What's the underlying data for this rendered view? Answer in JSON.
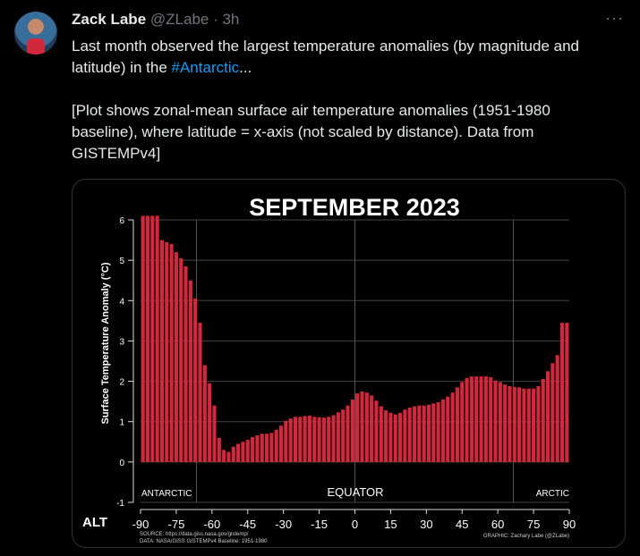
{
  "tweet": {
    "author_name": "Zack Labe",
    "handle": "@ZLabe",
    "separator": " · ",
    "time": "3h",
    "more_label": "···",
    "text_line1_pre": "Last month observed the largest temperature anomalies (by magnitude and latitude) in the ",
    "hashtag": "#Antarctic",
    "text_line1_post": "...",
    "text_line2": "[Plot shows zonal-mean surface air temperature anomalies (1951-1980 baseline), where latitude = x-axis (not scaled by distance). Data from GISTEMPv4]",
    "alt_label": "ALT"
  },
  "chart_data": {
    "type": "bar",
    "title": "SEPTEMBER 2023",
    "ylabel": "Surface Temperature Anomaly (°C)",
    "ylim": [
      -1,
      6
    ],
    "xlim": [
      -90,
      90
    ],
    "grid": true,
    "yticks": [
      "6",
      "5",
      "4",
      "3",
      "2",
      "1",
      "0",
      "-1"
    ],
    "xticks": [
      "-90",
      "-75",
      "-60",
      "-45",
      "-30",
      "-15",
      "0",
      "15",
      "30",
      "45",
      "60",
      "75",
      "90"
    ],
    "region_labels": [
      "ANTARCTIC",
      "EQUATOR",
      "ARCTIC"
    ],
    "source_line1": "SOURCE: https://data.giss.nasa.gov/gistemp/",
    "source_line2": "DATA: NASA/GISS GISTEMPv4 Baseline: 1951-1980",
    "graphic_credit": "GRAPHIC: Zachary Labe (@ZLabe)",
    "bar_color": "#d2283c",
    "x": [
      -89,
      -87,
      -85,
      -83,
      -81,
      -79,
      -77,
      -75,
      -73,
      -71,
      -69,
      -67,
      -65,
      -63,
      -61,
      -59,
      -57,
      -55,
      -53,
      -51,
      -49,
      -47,
      -45,
      -43,
      -41,
      -39,
      -37,
      -35,
      -33,
      -31,
      -29,
      -27,
      -25,
      -23,
      -21,
      -19,
      -17,
      -15,
      -13,
      -11,
      -9,
      -7,
      -5,
      -3,
      -1,
      1,
      3,
      5,
      7,
      9,
      11,
      13,
      15,
      17,
      19,
      21,
      23,
      25,
      27,
      29,
      31,
      33,
      35,
      37,
      39,
      41,
      43,
      45,
      47,
      49,
      51,
      53,
      55,
      57,
      59,
      61,
      63,
      65,
      67,
      69,
      71,
      73,
      75,
      77,
      79,
      81,
      83,
      85,
      87,
      89
    ],
    "values": [
      6.1,
      6.1,
      6.1,
      6.1,
      5.5,
      5.45,
      5.4,
      5.2,
      5.05,
      4.85,
      4.5,
      4.05,
      3.45,
      2.4,
      1.95,
      1.4,
      0.6,
      0.3,
      0.25,
      0.38,
      0.45,
      0.5,
      0.55,
      0.62,
      0.66,
      0.7,
      0.7,
      0.72,
      0.8,
      0.9,
      1.02,
      1.08,
      1.12,
      1.12,
      1.14,
      1.15,
      1.12,
      1.11,
      1.1,
      1.12,
      1.16,
      1.23,
      1.3,
      1.4,
      1.55,
      1.7,
      1.75,
      1.72,
      1.65,
      1.52,
      1.38,
      1.28,
      1.22,
      1.18,
      1.22,
      1.3,
      1.35,
      1.38,
      1.4,
      1.4,
      1.42,
      1.45,
      1.48,
      1.55,
      1.62,
      1.72,
      1.85,
      1.98,
      2.08,
      2.12,
      2.12,
      2.12,
      2.12,
      2.1,
      2.02,
      1.98,
      1.92,
      1.88,
      1.86,
      1.85,
      1.82,
      1.82,
      1.82,
      1.88,
      2.06,
      2.25,
      2.45,
      2.65,
      3.45,
      3.45
    ]
  }
}
